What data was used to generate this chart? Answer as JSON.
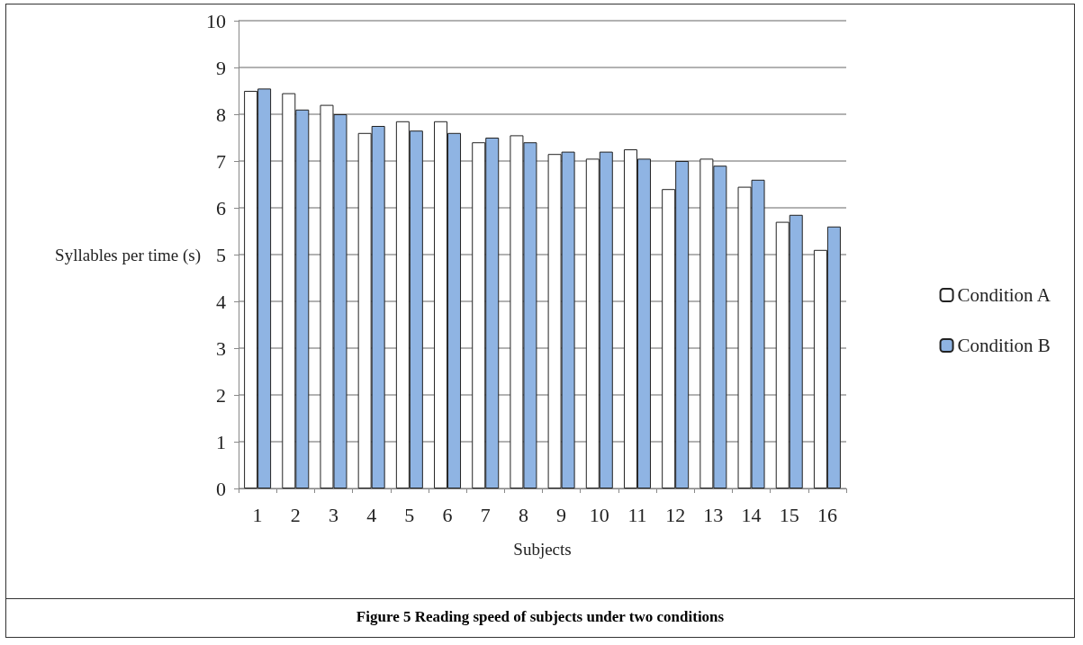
{
  "chart_data": {
    "type": "bar",
    "title": "Figure 5 Reading speed of subjects under two conditions",
    "xlabel": "Subjects",
    "ylabel": "Syllables per time (s)",
    "categories": [
      "1",
      "2",
      "3",
      "4",
      "5",
      "6",
      "7",
      "8",
      "9",
      "10",
      "11",
      "12",
      "13",
      "14",
      "15",
      "16"
    ],
    "series": [
      {
        "name": "Condition A",
        "color": "#ffffff",
        "values": [
          8.5,
          8.45,
          8.2,
          7.6,
          7.85,
          7.85,
          7.4,
          7.55,
          7.15,
          7.05,
          7.25,
          6.4,
          7.05,
          6.45,
          5.7,
          5.1
        ]
      },
      {
        "name": "Condition B",
        "color": "#8fb4e3",
        "values": [
          8.55,
          8.1,
          8.0,
          7.75,
          7.65,
          7.6,
          7.5,
          7.4,
          7.2,
          7.2,
          7.05,
          7.0,
          6.9,
          6.6,
          5.85,
          5.6
        ]
      }
    ],
    "ylim": [
      0,
      10
    ],
    "yticks": [
      0,
      1,
      2,
      3,
      4,
      5,
      6,
      7,
      8,
      9,
      10
    ],
    "grid": "y",
    "legend": "right"
  }
}
